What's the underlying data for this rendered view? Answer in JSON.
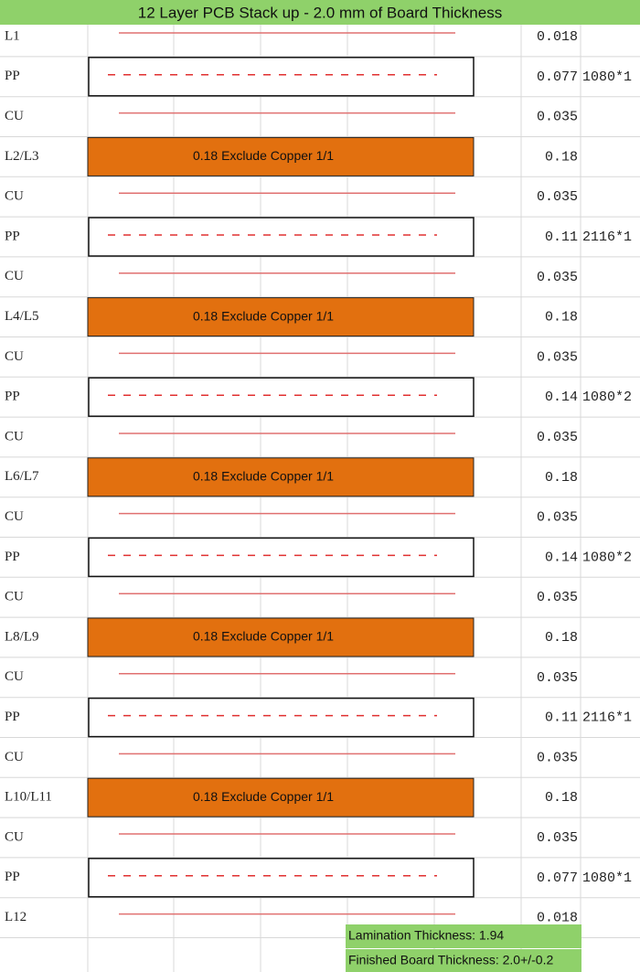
{
  "header": {
    "title": "12 Layer PCB Stack up - 2.0 mm of Board Thickness"
  },
  "rows": [
    {
      "layer": "L1",
      "thickness": "0.018"
    },
    {
      "layer": "PP",
      "thickness": "0.077",
      "spec": "1080*1"
    },
    {
      "layer": "CU",
      "thickness": "0.035"
    },
    {
      "layer": "L2/L3",
      "thickness": "0.18",
      "core": "0.18 Exclude Copper  1/1"
    },
    {
      "layer": "CU",
      "thickness": "0.035"
    },
    {
      "layer": "PP",
      "thickness": "0.11",
      "spec": "2116*1"
    },
    {
      "layer": "CU",
      "thickness": "0.035"
    },
    {
      "layer": "L4/L5",
      "thickness": "0.18",
      "core": "0.18 Exclude Copper  1/1"
    },
    {
      "layer": "CU",
      "thickness": "0.035"
    },
    {
      "layer": "PP",
      "thickness": "0.14",
      "spec": "1080*2"
    },
    {
      "layer": "CU",
      "thickness": "0.035"
    },
    {
      "layer": "L6/L7",
      "thickness": "0.18",
      "core": "0.18 Exclude Copper  1/1"
    },
    {
      "layer": "CU",
      "thickness": "0.035"
    },
    {
      "layer": "PP",
      "thickness": "0.14",
      "spec": "1080*2"
    },
    {
      "layer": "CU",
      "thickness": "0.035"
    },
    {
      "layer": "L8/L9",
      "thickness": "0.18",
      "core": "0.18 Exclude Copper  1/1"
    },
    {
      "layer": "CU",
      "thickness": "0.035"
    },
    {
      "layer": "PP",
      "thickness": "0.11",
      "spec": "2116*1"
    },
    {
      "layer": "CU",
      "thickness": "0.035"
    },
    {
      "layer": "L10/L11",
      "thickness": "0.18",
      "core": "0.18 Exclude Copper  1/1"
    },
    {
      "layer": "CU",
      "thickness": "0.035"
    },
    {
      "layer": "PP",
      "thickness": "0.077",
      "spec": "1080*1"
    },
    {
      "layer": "L12",
      "thickness": "0.018"
    }
  ],
  "footer": {
    "lamination": "Lamination Thickness: 1.94",
    "finished": "Finished Board Thickness: 2.0+/-0.2"
  }
}
